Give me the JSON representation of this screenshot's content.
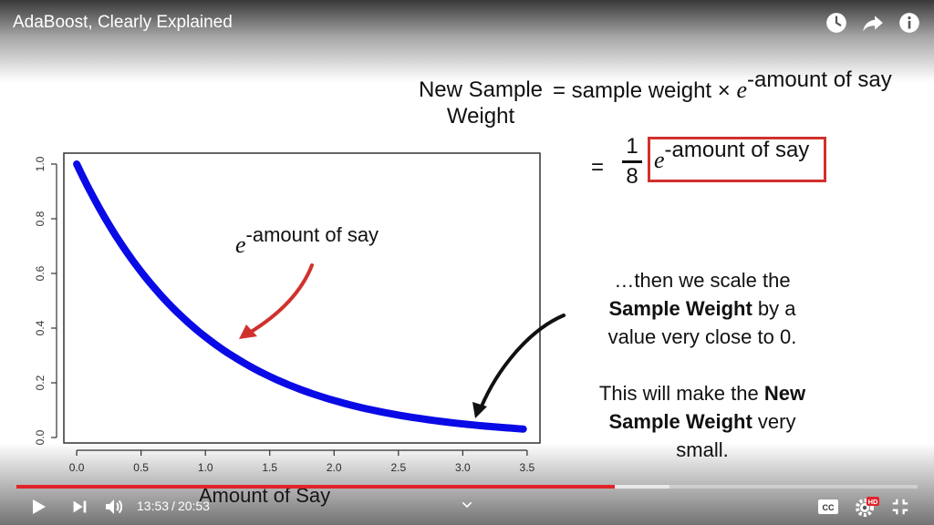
{
  "video": {
    "title": "AdaBoost, Clearly Explained",
    "current_time": "13:53",
    "duration": "20:53",
    "progress": 0.664,
    "buffered": 0.725,
    "quality_badge": "HD"
  },
  "icons": {
    "top": [
      "watch-later-icon",
      "share-icon",
      "info-icon"
    ],
    "bottom_left": [
      "play-icon",
      "next-icon",
      "volume-icon"
    ],
    "bottom_right": [
      "captions-icon",
      "settings-icon",
      "exit-fullscreen-icon"
    ],
    "center": "chevron-down-icon"
  },
  "formula": {
    "lhs_line1": "New Sample",
    "lhs_line2": "Weight",
    "rhs_prefix": "= sample weight ×",
    "e": "e",
    "exponent": "-amount of say",
    "equals": "=",
    "numerator": "1",
    "denominator": "8",
    "boxed_e": "e",
    "boxed_exponent": "-amount of say"
  },
  "graph_label": {
    "e": "e",
    "exponent": "-amount of say"
  },
  "explanation": {
    "l1": "…then we scale the",
    "l2_bold": "Sample Weight",
    "l2_rest": " by a",
    "l3": "value very close to 0.",
    "l4_pre": "This will make the ",
    "l4_bold": "New",
    "l5_bold": "Sample Weight",
    "l5_rest": " very",
    "l6": "small."
  },
  "colors": {
    "curve": "#0a0ae6",
    "red_arrow": "#d0312d",
    "progress": "#e0242a",
    "box": "#d0312d"
  },
  "chart_data": {
    "type": "line",
    "xlabel": "Amount of Say",
    "ylabel": "",
    "xlim": [
      -0.1,
      3.6
    ],
    "ylim": [
      -0.02,
      1.04
    ],
    "xticks": [
      "0.0",
      "0.5",
      "1.0",
      "1.5",
      "2.0",
      "2.5",
      "3.0",
      "3.5"
    ],
    "yticks": [
      "0.0",
      "0.2",
      "0.4",
      "0.6",
      "0.8",
      "1.0"
    ],
    "series": [
      {
        "x": [
          0.0,
          0.25,
          0.5,
          0.75,
          1.0,
          1.25,
          1.5,
          1.75,
          2.0,
          2.25,
          2.5,
          2.75,
          3.0,
          3.25,
          3.47
        ],
        "y": [
          1.0,
          0.779,
          0.607,
          0.472,
          0.368,
          0.287,
          0.223,
          0.174,
          0.135,
          0.105,
          0.082,
          0.064,
          0.05,
          0.039,
          0.031
        ]
      }
    ]
  }
}
